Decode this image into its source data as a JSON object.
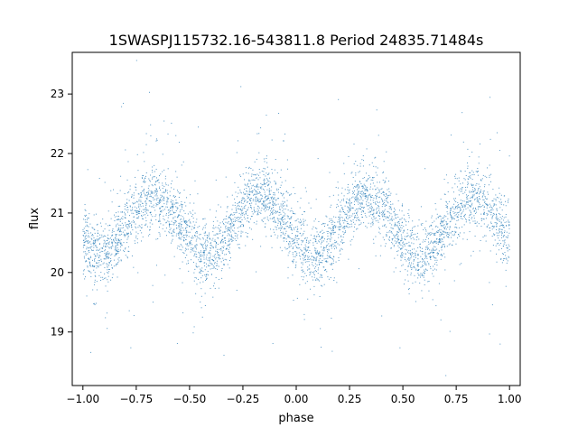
{
  "chart_data": {
    "type": "scatter",
    "title": "1SWASPJ115732.16-543811.8 Period 24835.71484s",
    "xlabel": "phase",
    "ylabel": "flux",
    "xlim": [
      -1.05,
      1.05
    ],
    "ylim": [
      18.1,
      23.7
    ],
    "xticks": [
      -1.0,
      -0.75,
      -0.5,
      -0.25,
      0.0,
      0.25,
      0.5,
      0.75,
      1.0
    ],
    "xtick_labels": [
      "−1.00",
      "−0.75",
      "−0.50",
      "−0.25",
      "0.00",
      "0.25",
      "0.50",
      "0.75",
      "1.00"
    ],
    "yticks": [
      19,
      20,
      21,
      22,
      23
    ],
    "ytick_labels": [
      "19",
      "20",
      "21",
      "22",
      "23"
    ],
    "grid": false,
    "legend": false,
    "point_color": "#1f77b4",
    "light_curve": {
      "phase_minima": [
        -0.92,
        -0.42,
        0.08,
        0.58
      ],
      "min_flux": 20.3,
      "max_flux": 21.3,
      "shape_period": 0.5,
      "scatter_sigma": 0.35,
      "phase_range": [
        -1.0,
        1.0
      ]
    }
  }
}
